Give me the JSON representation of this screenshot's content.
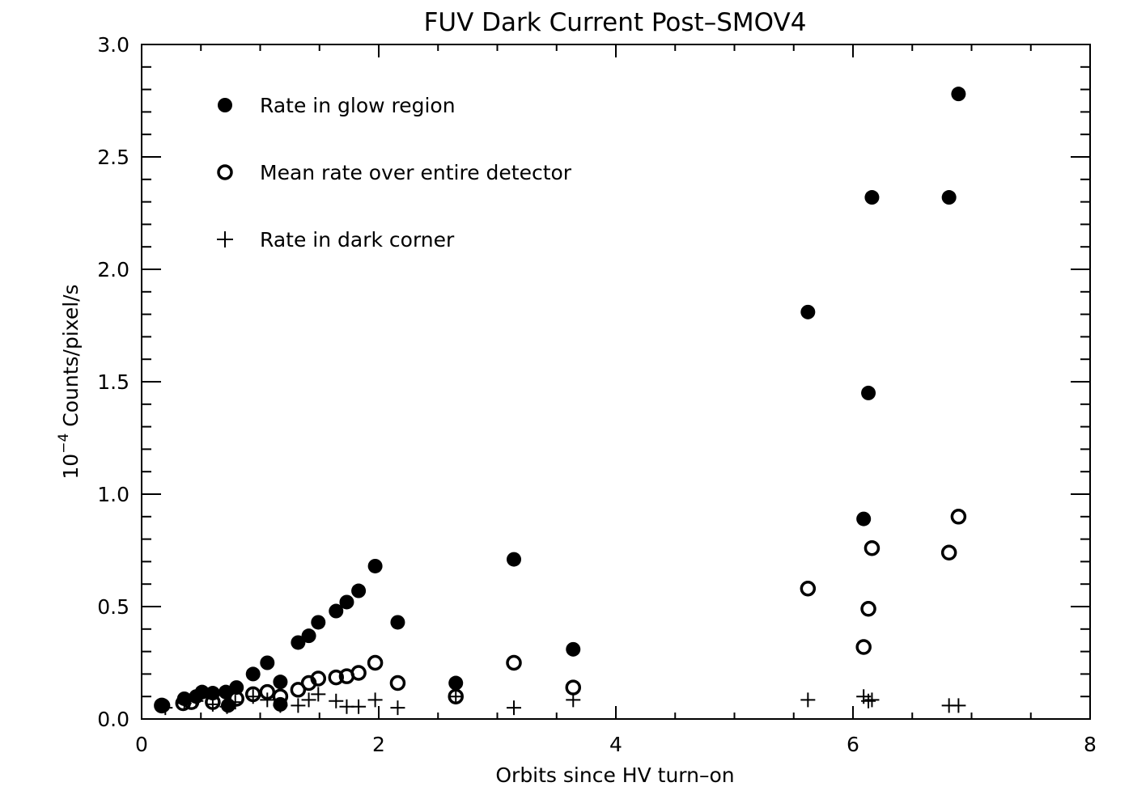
{
  "chart_data": {
    "type": "scatter",
    "title": "FUV Dark Current Post–SMOV4",
    "xlabel": "Orbits since HV turn–on",
    "ylabel": {
      "base": "10",
      "exponent": "−4",
      "unit": "Counts/pixel/s"
    },
    "xlim": [
      0,
      8
    ],
    "ylim": [
      0,
      3.0
    ],
    "xticks": [
      "0",
      "2",
      "4",
      "6",
      "8"
    ],
    "xtick_values": [
      0,
      2,
      4,
      6,
      8
    ],
    "yticks": [
      "0.0",
      "0.5",
      "1.0",
      "1.5",
      "2.0",
      "2.5",
      "3.0"
    ],
    "ytick_values": [
      0,
      0.5,
      1.0,
      1.5,
      2.0,
      2.5,
      3.0
    ],
    "grid": false,
    "legend_placement": "top-left",
    "series": [
      {
        "name": "Rate in glow region",
        "marker": "filled-circle",
        "x": [
          0.18,
          0.36,
          0.46,
          0.51,
          0.6,
          0.71,
          0.73,
          0.8,
          0.94,
          1.06,
          1.17,
          1.17,
          1.32,
          1.41,
          1.49,
          1.64,
          1.73,
          1.83,
          1.97,
          2.16,
          2.65,
          3.14,
          3.64,
          5.62,
          6.09,
          6.13,
          6.16,
          6.81,
          6.89
        ],
        "y": [
          0.06,
          0.09,
          0.1,
          0.12,
          0.115,
          0.12,
          0.06,
          0.14,
          0.2,
          0.25,
          0.165,
          0.065,
          0.34,
          0.37,
          0.43,
          0.48,
          0.52,
          0.57,
          0.68,
          0.43,
          0.16,
          0.71,
          0.31,
          1.81,
          0.89,
          1.45,
          2.32,
          2.32,
          2.78
        ]
      },
      {
        "name": "Mean rate over entire detector",
        "marker": "open-circle",
        "x": [
          0.17,
          0.35,
          0.42,
          0.6,
          0.8,
          0.94,
          1.06,
          1.17,
          1.32,
          1.41,
          1.49,
          1.64,
          1.73,
          1.83,
          1.97,
          2.16,
          2.65,
          3.14,
          3.64,
          5.62,
          6.09,
          6.13,
          6.16,
          6.81,
          6.89
        ],
        "y": [
          0.06,
          0.07,
          0.075,
          0.075,
          0.09,
          0.11,
          0.12,
          0.1,
          0.13,
          0.16,
          0.18,
          0.185,
          0.19,
          0.205,
          0.25,
          0.16,
          0.1,
          0.25,
          0.14,
          0.58,
          0.32,
          0.49,
          0.76,
          0.74,
          0.9
        ]
      },
      {
        "name": "Rate in dark corner",
        "marker": "plus",
        "x": [
          0.2,
          0.36,
          0.46,
          0.6,
          0.72,
          0.79,
          0.94,
          1.06,
          1.17,
          1.32,
          1.41,
          1.49,
          1.64,
          1.73,
          1.83,
          1.97,
          2.16,
          2.65,
          3.14,
          3.64,
          5.62,
          6.09,
          6.13,
          6.16,
          6.81,
          6.89
        ],
        "y": [
          0.05,
          0.07,
          0.08,
          0.065,
          0.055,
          0.075,
          0.1,
          0.085,
          0.06,
          0.06,
          0.085,
          0.11,
          0.08,
          0.055,
          0.055,
          0.085,
          0.05,
          0.1,
          0.05,
          0.085,
          0.085,
          0.1,
          0.08,
          0.085,
          0.06,
          0.06
        ]
      }
    ]
  }
}
